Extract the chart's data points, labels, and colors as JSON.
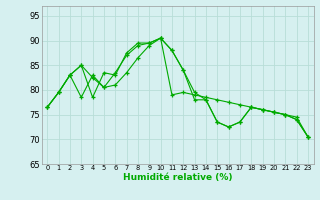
{
  "xlabel": "Humidité relative (%)",
  "bg_color": "#d6f0f0",
  "grid_color": "#b8ddd8",
  "line_color": "#00aa00",
  "xlim": [
    -0.5,
    23.5
  ],
  "ylim": [
    65,
    97
  ],
  "yticks": [
    65,
    70,
    75,
    80,
    85,
    90,
    95
  ],
  "xticks": [
    0,
    1,
    2,
    3,
    4,
    5,
    6,
    7,
    8,
    9,
    10,
    11,
    12,
    13,
    14,
    15,
    16,
    17,
    18,
    19,
    20,
    21,
    22,
    23
  ],
  "series": [
    [
      76.5,
      79.5,
      83.0,
      85.0,
      82.5,
      80.5,
      83.5,
      87.0,
      89.0,
      89.5,
      90.5,
      88.0,
      84.0,
      78.0,
      78.0,
      73.5,
      72.5,
      73.5,
      76.5,
      76.0,
      75.5,
      75.0,
      74.0,
      70.5
    ],
    [
      76.5,
      79.5,
      83.0,
      78.5,
      83.0,
      80.5,
      81.0,
      83.5,
      86.5,
      89.0,
      90.5,
      79.0,
      79.5,
      79.0,
      78.5,
      78.0,
      77.5,
      77.0,
      76.5,
      76.0,
      75.5,
      75.0,
      74.5,
      70.5
    ],
    [
      76.5,
      79.5,
      83.0,
      85.0,
      78.5,
      83.5,
      83.0,
      87.5,
      89.5,
      89.5,
      90.5,
      88.0,
      84.0,
      79.5,
      78.0,
      73.5,
      72.5,
      73.5,
      76.5,
      76.0,
      75.5,
      75.0,
      74.0,
      70.5
    ]
  ],
  "xlabel_fontsize": 6.5,
  "ytick_fontsize": 6.0,
  "xtick_fontsize": 4.8
}
